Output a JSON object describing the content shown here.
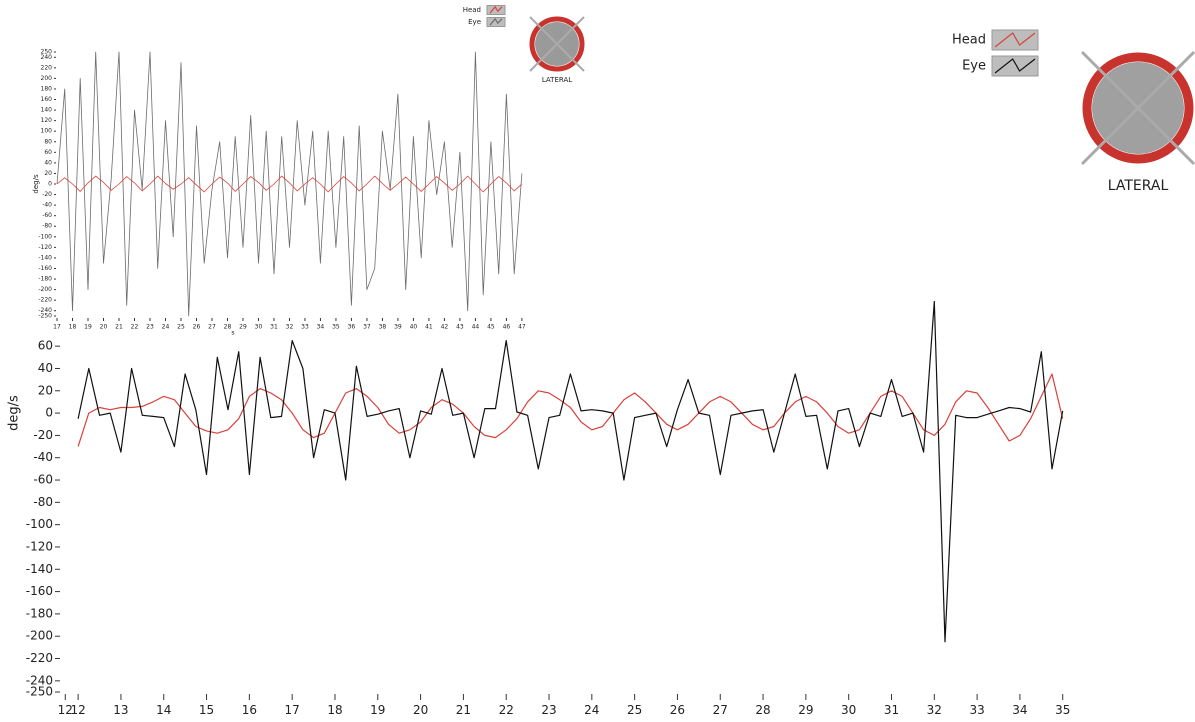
{
  "chart_data": [
    {
      "type": "line",
      "ylabel": "deg/s",
      "xlabel": "s",
      "annotations": [
        "LATERAL"
      ],
      "x": [
        17,
        17.5,
        18,
        18.5,
        19,
        19.5,
        20,
        20.5,
        21,
        21.5,
        22,
        22.5,
        23,
        23.5,
        24,
        24.5,
        25,
        25.5,
        26,
        26.5,
        27,
        27.5,
        28,
        28.5,
        29,
        29.5,
        30,
        30.5,
        31,
        31.5,
        32,
        32.5,
        33,
        33.5,
        34,
        34.5,
        35,
        35.5,
        36,
        36.5,
        37,
        37.5,
        38,
        38.5,
        39,
        39.5,
        40,
        40.5,
        41,
        41.5,
        42,
        42.5,
        43,
        43.5,
        44,
        44.5,
        45,
        45.5,
        46,
        46.5,
        47
      ],
      "series": [
        {
          "name": "Eye",
          "color": "#6b6b6b",
          "values": [
            0,
            180,
            -240,
            200,
            -200,
            250,
            -150,
            10,
            250,
            -230,
            140,
            -10,
            250,
            -160,
            120,
            -100,
            230,
            -250,
            110,
            -150,
            -10,
            80,
            -140,
            90,
            -120,
            130,
            -150,
            100,
            -170,
            90,
            -120,
            120,
            -40,
            100,
            -150,
            100,
            -120,
            90,
            -230,
            110,
            -200,
            -160,
            100,
            -10,
            170,
            -200,
            90,
            -140,
            120,
            -20,
            80,
            -120,
            60,
            -240,
            250,
            -210,
            80,
            -170,
            170,
            -170,
            20
          ]
        },
        {
          "name": "Head",
          "color": "#d9413a",
          "values": [
            0,
            12,
            0,
            -14,
            2,
            15,
            3,
            -12,
            0,
            14,
            2,
            -13,
            0,
            15,
            1,
            -10,
            0,
            12,
            -2,
            -15,
            0,
            13,
            2,
            -14,
            0,
            14,
            3,
            -12,
            0,
            15,
            2,
            -13,
            0,
            12,
            0,
            -15,
            0,
            14,
            2,
            -13,
            0,
            15,
            1,
            -12,
            0,
            13,
            0,
            -14,
            0,
            14,
            2,
            -12,
            0,
            15,
            0,
            -15,
            0,
            14,
            2,
            -13,
            0
          ]
        }
      ],
      "xlim": [
        17,
        47.2
      ],
      "ylim": [
        -250,
        250
      ],
      "xticks": [
        17,
        18,
        19,
        20,
        21,
        22,
        23,
        24,
        25,
        26,
        27,
        28,
        29,
        30,
        31,
        32,
        33,
        34,
        35,
        36,
        37,
        38,
        39,
        40,
        41,
        42,
        43,
        44,
        45,
        46,
        47
      ],
      "yticks": [
        250,
        240,
        220,
        200,
        180,
        160,
        140,
        120,
        100,
        80,
        60,
        40,
        20,
        0,
        -20,
        -40,
        -60,
        -80,
        -100,
        -120,
        -140,
        -160,
        -180,
        -200,
        -220,
        -240,
        -250
      ]
    },
    {
      "type": "line",
      "ylabel": "deg/s",
      "annotations": [
        "LATERAL"
      ],
      "x": [
        12,
        12.25,
        12.5,
        12.75,
        13,
        13.25,
        13.5,
        13.75,
        14,
        14.25,
        14.5,
        14.75,
        15,
        15.25,
        15.5,
        15.75,
        16,
        16.25,
        16.5,
        16.75,
        17,
        17.25,
        17.5,
        17.75,
        18,
        18.25,
        18.5,
        18.75,
        19,
        19.25,
        19.5,
        19.75,
        20,
        20.25,
        20.5,
        20.75,
        21,
        21.25,
        21.5,
        21.75,
        22,
        22.25,
        22.5,
        22.75,
        23,
        23.25,
        23.5,
        23.75,
        24,
        24.25,
        24.5,
        24.75,
        25,
        25.25,
        25.5,
        25.75,
        26,
        26.25,
        26.5,
        26.75,
        27,
        27.25,
        27.5,
        27.75,
        28,
        28.25,
        28.5,
        28.75,
        29,
        29.25,
        29.5,
        29.75,
        30,
        30.25,
        30.5,
        30.75,
        31,
        31.25,
        31.5,
        31.75,
        32,
        32.25,
        32.5,
        32.75,
        33,
        33.25,
        33.5,
        33.75,
        34,
        34.25,
        34.5,
        34.75,
        35
      ],
      "series": [
        {
          "name": "Head",
          "color": "#d9413a",
          "values": [
            -30,
            0,
            5,
            3,
            5,
            5,
            6,
            10,
            15,
            12,
            0,
            -12,
            -16,
            -18,
            -15,
            -5,
            15,
            22,
            18,
            12,
            0,
            -15,
            -22,
            -18,
            0,
            18,
            22,
            15,
            5,
            -10,
            -18,
            -15,
            -8,
            5,
            12,
            8,
            0,
            -12,
            -20,
            -22,
            -15,
            -5,
            10,
            20,
            18,
            12,
            5,
            -8,
            -15,
            -12,
            0,
            12,
            18,
            10,
            0,
            -10,
            -15,
            -10,
            0,
            10,
            15,
            10,
            0,
            -10,
            -15,
            -12,
            0,
            10,
            15,
            10,
            0,
            -12,
            -18,
            -15,
            0,
            15,
            20,
            15,
            0,
            -15,
            -20,
            -10,
            10,
            20,
            18,
            5,
            -10,
            -25,
            -20,
            -5,
            15,
            35,
            -5
          ]
        },
        {
          "name": "Eye",
          "color": "#111111",
          "values": [
            -5,
            40,
            -2,
            0,
            -35,
            40,
            -2,
            -3,
            -4,
            -30,
            35,
            3,
            -55,
            50,
            3,
            55,
            -55,
            50,
            -4,
            -3,
            65,
            40,
            -40,
            3,
            0,
            -60,
            42,
            -3,
            -1,
            2,
            4,
            -40,
            2,
            -1,
            40,
            -2,
            0,
            -40,
            4,
            4,
            65,
            1,
            -2,
            -50,
            -4,
            -2,
            35,
            2,
            3,
            2,
            0,
            -60,
            -4,
            -2,
            0,
            -30,
            3,
            30,
            0,
            -2,
            -55,
            -2,
            0,
            2,
            3,
            -35,
            0,
            35,
            -3,
            -2,
            -50,
            2,
            4,
            -30,
            0,
            -3,
            30,
            -3,
            0,
            -35,
            100,
            -205,
            -2,
            -4,
            -4,
            -1,
            2,
            5,
            4,
            1,
            55,
            -50,
            2
          ]
        }
      ],
      "xlim": [
        11.6,
        35.1
      ],
      "ylim": [
        -250,
        70
      ],
      "xticks": [
        {
          "value": 11.7,
          "label": "12"
        },
        12,
        13,
        14,
        15,
        16,
        17,
        18,
        19,
        20,
        21,
        22,
        23,
        24,
        25,
        26,
        27,
        28,
        29,
        30,
        31,
        32,
        33,
        34,
        35
      ],
      "yticks": [
        60,
        40,
        20,
        0,
        -20,
        -40,
        -60,
        -80,
        -100,
        -120,
        -140,
        -160,
        -180,
        -200,
        -220,
        -240,
        -250
      ]
    }
  ]
}
